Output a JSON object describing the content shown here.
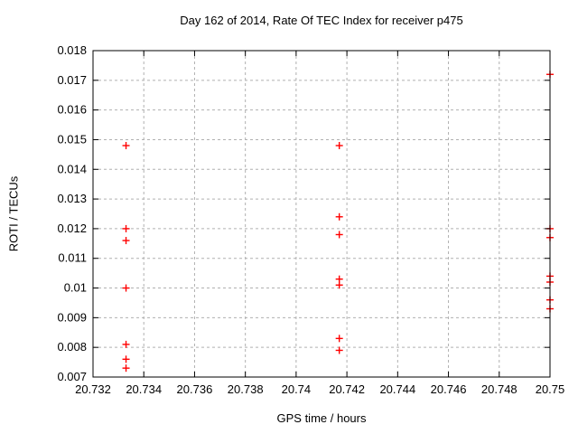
{
  "chart_data": {
    "type": "scatter",
    "title": "Day 162 of 2014, Rate Of TEC Index for receiver p475",
    "xlabel": "GPS time / hours",
    "ylabel": "ROTI / TECUs",
    "xlim": [
      20.732,
      20.75
    ],
    "ylim": [
      0.007,
      0.018
    ],
    "xticks": [
      20.732,
      20.734,
      20.736,
      20.738,
      20.74,
      20.742,
      20.744,
      20.746,
      20.748,
      20.75
    ],
    "xtick_labels": [
      "20.732",
      "20.734",
      "20.736",
      "20.738",
      "20.74",
      "20.742",
      "20.744",
      "20.746",
      "20.748",
      "20.75"
    ],
    "yticks": [
      0.007,
      0.008,
      0.009,
      0.01,
      0.011,
      0.012,
      0.013,
      0.014,
      0.015,
      0.016,
      0.017,
      0.018
    ],
    "ytick_labels": [
      "0.007",
      "0.008",
      "0.009",
      "0.01",
      "0.011",
      "0.012",
      "0.013",
      "0.014",
      "0.015",
      "0.016",
      "0.017",
      "0.018"
    ],
    "grid": true,
    "legend": "none",
    "marker": "plus",
    "colors": {
      "marker": "#ff0000",
      "grid": "#b0b0b0",
      "border": "#000000",
      "text": "#000000",
      "background": "#ffffff"
    },
    "series": [
      {
        "name": "ROTI",
        "points": [
          [
            20.7333,
            0.0148
          ],
          [
            20.7333,
            0.012
          ],
          [
            20.7333,
            0.0116
          ],
          [
            20.7333,
            0.01
          ],
          [
            20.7333,
            0.0081
          ],
          [
            20.7333,
            0.0076
          ],
          [
            20.7333,
            0.0073
          ],
          [
            20.7417,
            0.0148
          ],
          [
            20.7417,
            0.0124
          ],
          [
            20.7417,
            0.0118
          ],
          [
            20.7417,
            0.0103
          ],
          [
            20.7417,
            0.0101
          ],
          [
            20.7417,
            0.0083
          ],
          [
            20.7417,
            0.0079
          ],
          [
            20.75,
            0.0172
          ],
          [
            20.75,
            0.012
          ],
          [
            20.75,
            0.0117
          ],
          [
            20.75,
            0.0104
          ],
          [
            20.75,
            0.0102
          ],
          [
            20.75,
            0.0096
          ],
          [
            20.75,
            0.0093
          ]
        ]
      }
    ]
  }
}
